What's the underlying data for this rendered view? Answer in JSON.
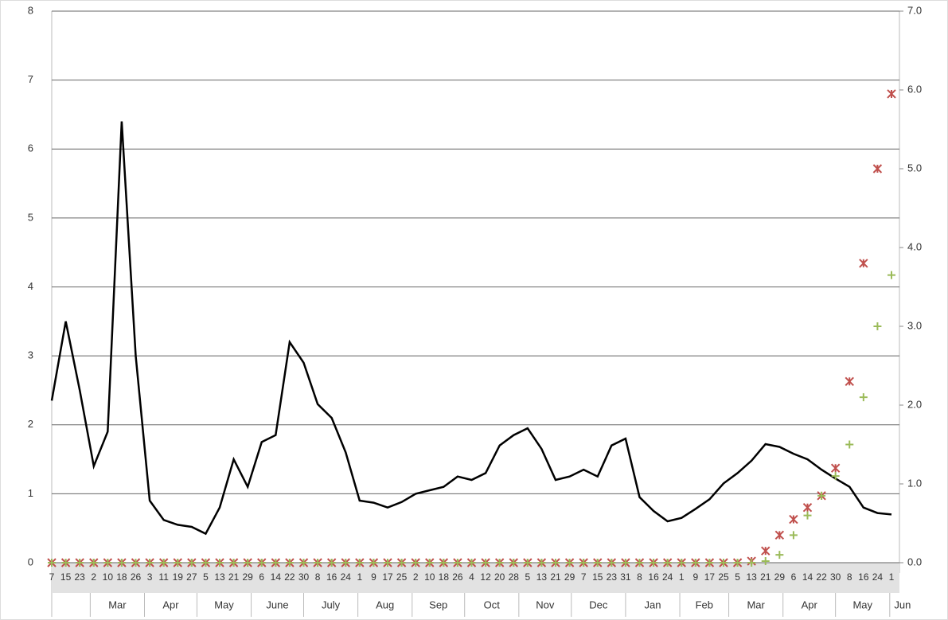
{
  "chart_data": {
    "type": "line",
    "categories": [
      "7",
      "15",
      "23",
      "2",
      "10",
      "18",
      "26",
      "3",
      "11",
      "19",
      "27",
      "5",
      "13",
      "21",
      "29",
      "6",
      "14",
      "22",
      "30",
      "8",
      "16",
      "24",
      "1",
      "9",
      "17",
      "25",
      "2",
      "10",
      "18",
      "26",
      "4",
      "12",
      "20",
      "28",
      "5",
      "13",
      "21",
      "29",
      "7",
      "15",
      "23",
      "31",
      "8",
      "16",
      "24",
      "1",
      "9",
      "17",
      "25",
      "5",
      "13",
      "21",
      "29",
      "6",
      "14",
      "22",
      "30",
      "8",
      "16",
      "24",
      "1"
    ],
    "months": [
      null,
      "Mar",
      "Apr",
      "May",
      "June",
      "July",
      "Aug",
      "Sep",
      "Oct",
      "Nov",
      "Dec",
      "Jan",
      "Feb",
      "Mar",
      "Apr",
      "May",
      "Jun"
    ],
    "series": [
      {
        "style": "line",
        "color": "#000000",
        "axis": "y",
        "values": [
          2.35,
          3.5,
          2.5,
          1.4,
          1.9,
          6.4,
          3.0,
          0.9,
          0.62,
          0.55,
          0.52,
          0.42,
          0.8,
          1.5,
          1.1,
          1.75,
          1.85,
          3.2,
          2.9,
          2.3,
          2.1,
          1.6,
          0.9,
          0.87,
          0.8,
          0.88,
          1.0,
          1.05,
          1.1,
          1.25,
          1.2,
          1.3,
          1.7,
          1.85,
          1.95,
          1.65,
          1.2,
          1.25,
          1.35,
          1.25,
          1.7,
          1.8,
          0.95,
          0.75,
          0.6,
          0.65,
          0.78,
          0.92,
          1.15,
          1.3,
          1.48,
          1.72,
          1.68,
          1.58,
          1.5,
          1.35,
          1.22,
          1.1,
          0.8,
          0.72,
          0.7
        ]
      },
      {
        "style": "asterisk",
        "color": "#c0504d",
        "axis": "y2",
        "values": [
          0,
          0,
          0,
          0,
          0,
          0,
          0,
          0,
          0,
          0,
          0,
          0,
          0,
          0,
          0,
          0,
          0,
          0,
          0,
          0,
          0,
          0,
          0,
          0,
          0,
          0,
          0,
          0,
          0,
          0,
          0,
          0,
          0,
          0,
          0,
          0,
          0,
          0,
          0,
          0,
          0,
          0,
          0,
          0,
          0,
          0,
          0,
          0,
          0,
          0,
          0.02,
          0.15,
          0.35,
          0.55,
          0.7,
          0.85,
          1.2,
          2.3,
          3.8,
          5.0,
          5.95
        ]
      },
      {
        "style": "plus",
        "color": "#9bbb59",
        "axis": "y2",
        "values": [
          0,
          0,
          0,
          0,
          0,
          0,
          0,
          0,
          0,
          0,
          0,
          0,
          0,
          0,
          0,
          0,
          0,
          0,
          0,
          0,
          0,
          0,
          0,
          0,
          0,
          0,
          0,
          0,
          0,
          0,
          0,
          0,
          0,
          0,
          0,
          0,
          0,
          0,
          0,
          0,
          0,
          0,
          0,
          0,
          0,
          0,
          0,
          0,
          0,
          0,
          0,
          0.02,
          0.1,
          0.35,
          0.6,
          0.85,
          1.1,
          1.5,
          2.1,
          3.0,
          3.65
        ]
      }
    ],
    "ylim": [
      0,
      8
    ],
    "yticks": [
      0,
      1,
      2,
      3,
      4,
      5,
      6,
      7,
      8
    ],
    "y2lim": [
      0,
      7
    ],
    "y2ticks": [
      {
        "value": 0,
        "label": "0.0"
      },
      {
        "value": 1,
        "label": "1.0"
      },
      {
        "value": 2,
        "label": "2.0"
      },
      {
        "value": 3,
        "label": "3.0"
      },
      {
        "value": 4,
        "label": "4.0"
      },
      {
        "value": 5,
        "label": "5.0"
      },
      {
        "value": 6,
        "label": "6.0"
      },
      {
        "value": 7,
        "label": "7.0"
      }
    ],
    "grid": true
  }
}
